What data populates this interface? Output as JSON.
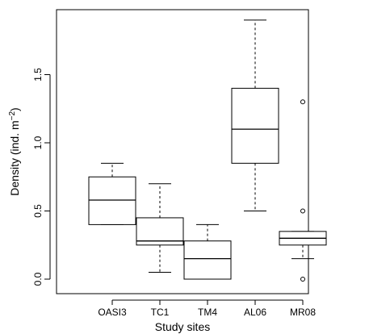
{
  "chart_data": {
    "type": "boxplot",
    "title": "",
    "xlabel": "Study sites",
    "ylabel_main": "Density (ind. m",
    "ylabel_sup": "−2",
    "ylabel_tail": ")",
    "ylim": [
      -0.05,
      2.0
    ],
    "yticks": [
      "0.0",
      "0.5",
      "1.0",
      "1.5"
    ],
    "ytick_values": [
      0.0,
      0.5,
      1.0,
      1.5
    ],
    "grid": false,
    "colors": {
      "box_fill": "#ffffff",
      "stroke": "#000000"
    },
    "categories": [
      "OASI3",
      "TC1",
      "TM4",
      "AL06",
      "MR08"
    ],
    "boxes": [
      {
        "name": "OASI3",
        "whisker_low": 0.4,
        "q1": 0.4,
        "median": 0.58,
        "q3": 0.75,
        "whisker_high": 0.85,
        "outliers": []
      },
      {
        "name": "TC1",
        "whisker_low": 0.05,
        "q1": 0.25,
        "median": 0.28,
        "q3": 0.45,
        "whisker_high": 0.7,
        "outliers": []
      },
      {
        "name": "TM4",
        "whisker_low": 0.0,
        "q1": 0.0,
        "median": 0.15,
        "q3": 0.28,
        "whisker_high": 0.4,
        "outliers": []
      },
      {
        "name": "AL06",
        "whisker_low": 0.5,
        "q1": 0.85,
        "median": 1.1,
        "q3": 1.4,
        "whisker_high": 1.9,
        "outliers": []
      },
      {
        "name": "MR08",
        "whisker_low": 0.15,
        "q1": 0.25,
        "median": 0.3,
        "q3": 0.35,
        "whisker_high": 0.35,
        "outliers": [
          0.0,
          0.5,
          1.3
        ]
      }
    ]
  }
}
